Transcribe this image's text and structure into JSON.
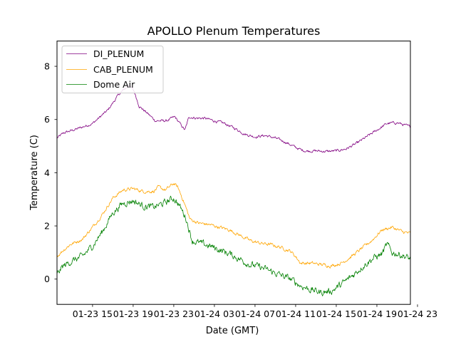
{
  "chart_data": {
    "type": "line",
    "title": "APOLLO Plenum Temperatures",
    "xlabel": "Date (GMT)",
    "ylabel": "Temperature (C)",
    "xlim": [
      11.5,
      46.3
    ],
    "ylim": [
      -0.95,
      8.95
    ],
    "x_unit": "hours since 2018-01-23 00:00 GMT",
    "x_ticks": [
      {
        "value": 15,
        "label": "01-23 15"
      },
      {
        "value": 19,
        "label": "01-23 19"
      },
      {
        "value": 23,
        "label": "01-23 23"
      },
      {
        "value": 27,
        "label": "01-24 03"
      },
      {
        "value": 31,
        "label": "01-24 07"
      },
      {
        "value": 35,
        "label": "01-24 11"
      },
      {
        "value": 39,
        "label": "01-24 15"
      },
      {
        "value": 43,
        "label": "01-24 19"
      },
      {
        "value": 47,
        "label": "01-24 23"
      }
    ],
    "y_ticks": [
      {
        "value": 0,
        "label": "0"
      },
      {
        "value": 2,
        "label": "2"
      },
      {
        "value": 4,
        "label": "4"
      },
      {
        "value": 6,
        "label": "6"
      },
      {
        "value": 8,
        "label": "8"
      }
    ],
    "legend_position": "top-left",
    "grid": false,
    "series": [
      {
        "name": "DI_PLENUM",
        "color": "#800080",
        "noise": 0.04,
        "x": [
          11.5,
          12.2,
          13.5,
          15.0,
          16.5,
          17.6,
          18.6,
          19.1,
          19.6,
          20.5,
          21.2,
          22.3,
          23.1,
          23.6,
          24.1,
          24.5,
          25.3,
          26.0,
          27.0,
          28.0,
          29.1,
          30.0,
          31.0,
          32.0,
          33.0,
          34.0,
          35.0,
          35.6,
          36.0,
          37.0,
          38.0,
          39.0,
          40.0,
          41.0,
          42.0,
          43.0,
          44.0,
          45.0,
          46.3
        ],
        "y": [
          5.3,
          5.5,
          5.65,
          5.85,
          6.35,
          6.95,
          7.3,
          7.05,
          6.5,
          6.2,
          5.95,
          5.95,
          6.1,
          5.85,
          5.6,
          6.1,
          6.05,
          6.05,
          5.95,
          5.85,
          5.65,
          5.45,
          5.35,
          5.4,
          5.3,
          5.15,
          4.95,
          4.85,
          4.82,
          4.82,
          4.8,
          4.82,
          4.9,
          5.1,
          5.35,
          5.6,
          5.85,
          5.88,
          5.72
        ]
      },
      {
        "name": "CAB_PLENUM",
        "color": "#ffa500",
        "noise": 0.05,
        "x": [
          11.5,
          12.0,
          12.8,
          14.0,
          15.0,
          16.0,
          17.0,
          18.0,
          19.0,
          20.0,
          21.0,
          21.5,
          22.2,
          23.0,
          23.4,
          24.0,
          24.6,
          25.5,
          26.5,
          27.5,
          28.5,
          29.5,
          30.5,
          31.5,
          32.5,
          33.5,
          34.5,
          35.0,
          35.5,
          36.5,
          37.5,
          38.5,
          39.5,
          40.5,
          41.5,
          42.5,
          43.5,
          44.5,
          45.5,
          46.3
        ],
        "y": [
          0.85,
          1.05,
          1.3,
          1.5,
          1.95,
          2.45,
          3.05,
          3.35,
          3.4,
          3.3,
          3.3,
          3.45,
          3.35,
          3.6,
          3.45,
          2.9,
          2.25,
          2.1,
          2.05,
          1.95,
          1.85,
          1.65,
          1.45,
          1.35,
          1.3,
          1.2,
          1.05,
          0.85,
          0.6,
          0.6,
          0.55,
          0.5,
          0.6,
          0.85,
          1.15,
          1.45,
          1.85,
          1.95,
          1.78,
          1.72
        ]
      },
      {
        "name": "Dome Air",
        "color": "#008000",
        "noise": 0.1,
        "x": [
          11.5,
          12.0,
          12.8,
          14.0,
          15.0,
          16.0,
          17.0,
          18.0,
          19.0,
          20.0,
          21.0,
          22.0,
          23.0,
          23.5,
          24.2,
          24.8,
          25.5,
          26.5,
          27.5,
          28.5,
          29.5,
          30.5,
          31.5,
          32.5,
          33.5,
          34.5,
          35.5,
          36.5,
          37.5,
          38.5,
          39.5,
          40.5,
          41.5,
          42.5,
          43.5,
          44.0,
          44.5,
          45.5,
          46.3
        ],
        "y": [
          0.15,
          0.45,
          0.65,
          0.85,
          1.25,
          1.8,
          2.5,
          2.85,
          2.95,
          2.75,
          2.7,
          2.85,
          3.05,
          2.8,
          2.3,
          1.45,
          1.35,
          1.25,
          1.1,
          0.95,
          0.75,
          0.55,
          0.45,
          0.3,
          0.15,
          0.0,
          -0.25,
          -0.4,
          -0.5,
          -0.45,
          -0.2,
          0.1,
          0.45,
          0.75,
          0.95,
          1.3,
          1.0,
          0.9,
          0.75
        ]
      }
    ]
  }
}
